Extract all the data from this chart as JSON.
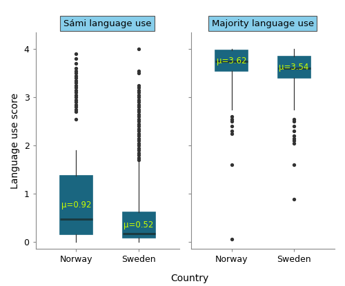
{
  "facets": [
    "Sámi language use",
    "Majority language use"
  ],
  "groups": [
    "Norway",
    "Sweden"
  ],
  "box_color": "#29ABD4",
  "box_edge_color": "#1a6680",
  "median_color": "#1a3a40",
  "mean_label_color": "#CCFF00",
  "whisker_color": "#333333",
  "flier_color": "#333333",
  "facet_bg": "#87CEEB",
  "facet_border": "#555555",
  "panel_bg": "#FFFFFF",
  "plot_bg": "#FFFFFF",
  "ylabel": "Language use score",
  "xlabel": "Country",
  "ylim": [
    -0.15,
    4.35
  ],
  "yticks": [
    0,
    1,
    2,
    3,
    4
  ],
  "boxes": {
    "sami_norway": {
      "q1": 0.15,
      "median": 0.47,
      "q3": 1.37,
      "whislo": 0.0,
      "whishi": 1.9,
      "mean": 0.92,
      "fliers": [
        2.55,
        2.7,
        2.75,
        2.8,
        2.85,
        2.9,
        2.95,
        3.0,
        3.05,
        3.1,
        3.15,
        3.2,
        3.25,
        3.3,
        3.35,
        3.4,
        3.45,
        3.5,
        3.55,
        3.6,
        3.7,
        3.8,
        3.9
      ]
    },
    "sami_sweden": {
      "q1": 0.08,
      "median": 0.17,
      "q3": 0.62,
      "whislo": 0.0,
      "whishi": 1.67,
      "mean": 0.52,
      "fliers": [
        1.7,
        1.75,
        1.8,
        1.85,
        1.9,
        1.95,
        2.0,
        2.05,
        2.1,
        2.15,
        2.2,
        2.25,
        2.3,
        2.35,
        2.4,
        2.45,
        2.5,
        2.55,
        2.6,
        2.65,
        2.7,
        2.75,
        2.8,
        2.85,
        2.9,
        2.95,
        3.0,
        3.05,
        3.1,
        3.15,
        3.2,
        3.25,
        3.5,
        3.55,
        4.0
      ]
    },
    "majority_norway": {
      "q1": 3.55,
      "median": 3.75,
      "q3": 3.97,
      "whislo": 2.75,
      "whishi": 4.0,
      "mean": 3.62,
      "fliers": [
        0.05,
        1.6,
        2.25,
        2.3,
        2.4,
        2.5,
        2.55,
        2.6
      ]
    },
    "majority_sweden": {
      "q1": 3.4,
      "median": 3.6,
      "q3": 3.85,
      "whislo": 2.75,
      "whishi": 4.0,
      "mean": 3.54,
      "fliers": [
        0.88,
        1.6,
        2.05,
        2.1,
        2.15,
        2.2,
        2.3,
        2.4,
        2.5,
        2.55
      ]
    }
  },
  "mean_labels": {
    "sami_norway": "μ=0.92",
    "sami_sweden": "μ=0.52",
    "majority_norway": "μ=3.62",
    "majority_sweden": "μ=3.54"
  }
}
